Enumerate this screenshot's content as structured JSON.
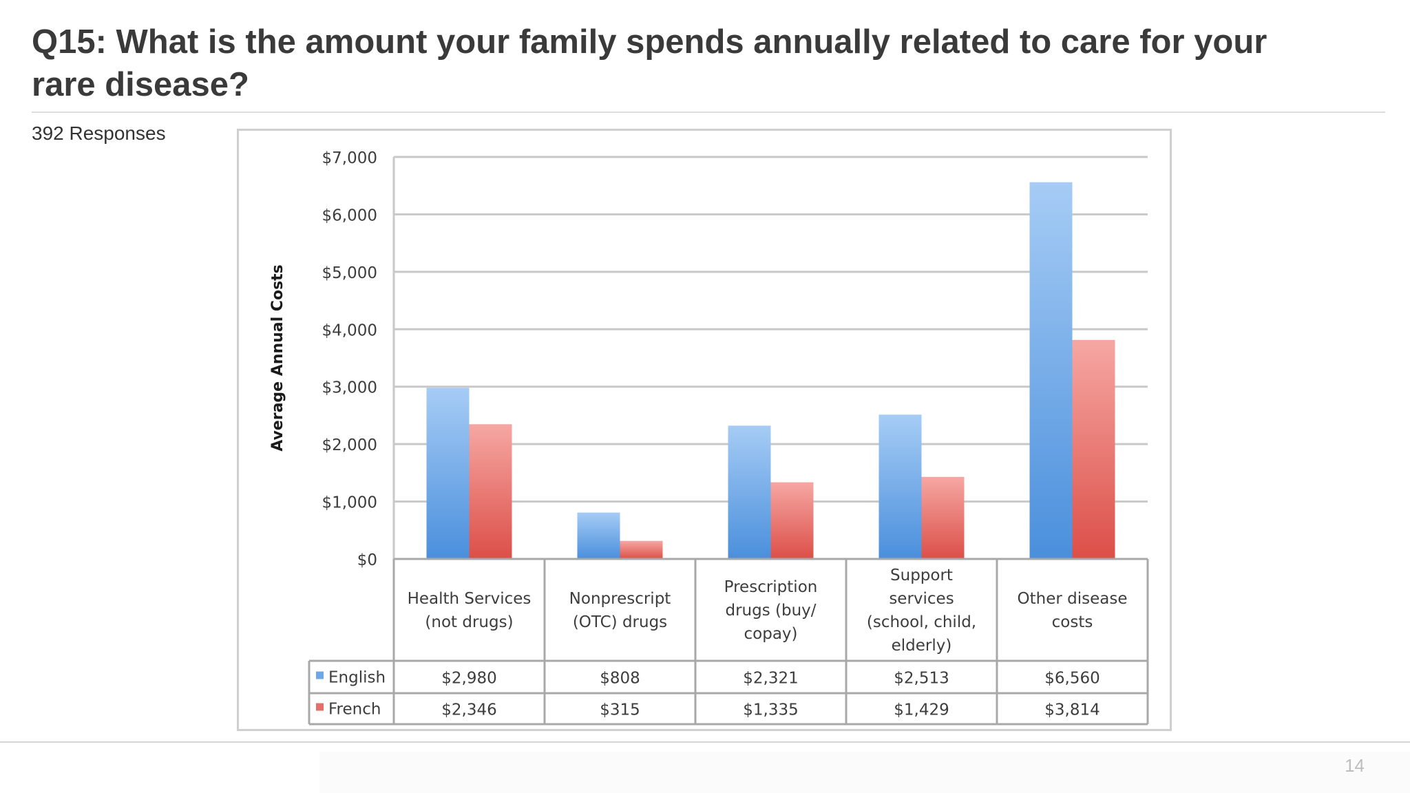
{
  "slide": {
    "title": "Q15: What is the amount your family spends annually related to care for your rare disease?",
    "responses": "392 Responses",
    "page_number": "14"
  },
  "chart_data": {
    "type": "bar",
    "title": "",
    "xlabel": "",
    "ylabel": "Average Annual Costs",
    "ylim": [
      0,
      7000
    ],
    "yticks": [
      0,
      1000,
      2000,
      3000,
      4000,
      5000,
      6000,
      7000
    ],
    "ytick_labels": [
      "$0",
      "$1,000",
      "$2,000",
      "$3,000",
      "$4,000",
      "$5,000",
      "$6,000",
      "$7,000"
    ],
    "grid": true,
    "legend": "data-table",
    "categories": [
      [
        "Health Services",
        "(not drugs)"
      ],
      [
        "Nonprescript",
        "(OTC) drugs"
      ],
      [
        "Prescription",
        "drugs (buy/",
        "copay)"
      ],
      [
        "Support",
        "services",
        "(school, child,",
        "elderly)"
      ],
      [
        "Other disease",
        "costs"
      ]
    ],
    "series": [
      {
        "name": "English",
        "color": "#6fa7e6",
        "values": [
          2980,
          808,
          2321,
          2513,
          6560
        ],
        "labels": [
          "$2,980",
          "$808",
          "$2,321",
          "$2,513",
          "$6,560"
        ]
      },
      {
        "name": "French",
        "color": "#e66f6a",
        "values": [
          2346,
          315,
          1335,
          1429,
          3814
        ],
        "labels": [
          "$2,346",
          "$315",
          "$1,335",
          "$1,429",
          "$3,814"
        ]
      }
    ]
  }
}
